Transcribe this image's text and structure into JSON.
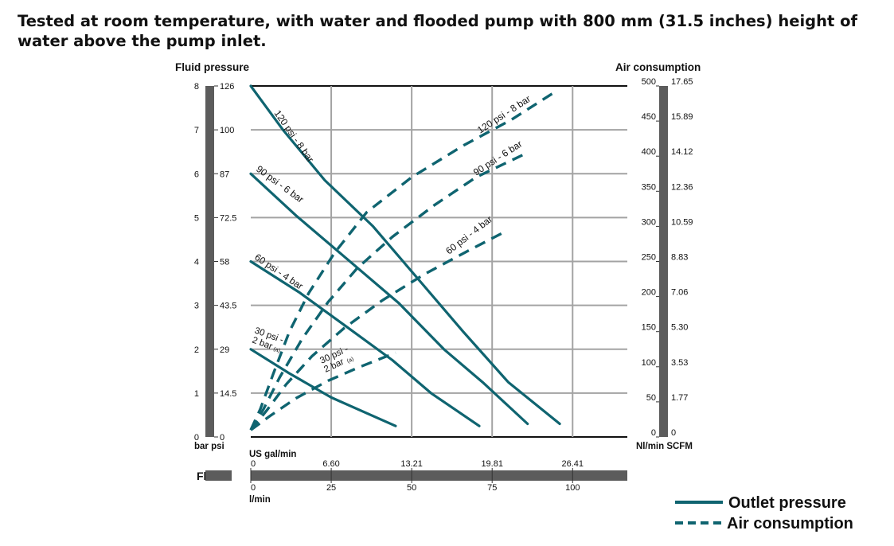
{
  "title": "Tested at room temperature, with water and flooded pump with 800 mm  (31.5 inches) height of water above the pump inlet.",
  "chart_data": {
    "type": "line",
    "left_axis": {
      "label": "Fluid pressure",
      "units_label": "bar psi",
      "bar_ticks": [
        "0",
        "1",
        "2",
        "3",
        "4",
        "5",
        "6",
        "7",
        "8"
      ],
      "psi_ticks": [
        "0",
        "14.5",
        "29",
        "43.5",
        "58",
        "72.5",
        "87",
        "100",
        "126"
      ],
      "ylim_bar": [
        0,
        8
      ]
    },
    "right_axis": {
      "label": "Air consumption",
      "units_label": "Nl/min SCFM",
      "nlmin_ticks": [
        "0",
        "50",
        "100",
        "150",
        "200",
        "250",
        "300",
        "350",
        "400",
        "450",
        "500"
      ],
      "scfm_ticks": [
        "0",
        "1.77",
        "3.53",
        "5.30",
        "7.06",
        "8.83",
        "10.59",
        "12.36",
        "14.12",
        "15.89",
        "17.65"
      ],
      "ylim_nlmin": [
        0,
        500
      ]
    },
    "x_axis": {
      "label": "Flow",
      "gal_label": "US gal/min",
      "lmin_label": "l/min",
      "gal_ticks": [
        "0",
        "6.60",
        "13.21",
        "19.81",
        "26.41"
      ],
      "lmin_ticks": [
        "0",
        "25",
        "50",
        "75",
        "100"
      ],
      "xlim_lmin": [
        0,
        117
      ]
    },
    "outlet_pressure_series": [
      {
        "name": "120 psi - 8 bar",
        "x": [
          0,
          10,
          23,
          38,
          52,
          66,
          80,
          96
        ],
        "y": [
          8,
          7.0,
          5.85,
          4.8,
          3.6,
          2.4,
          1.25,
          0.3
        ]
      },
      {
        "name": "90 psi - 6 bar",
        "x": [
          0,
          14,
          30,
          46,
          60,
          72,
          86
        ],
        "y": [
          6.0,
          5.05,
          4.05,
          3.05,
          2.0,
          1.25,
          0.3
        ]
      },
      {
        "name": "60 psi - 4 bar",
        "x": [
          0,
          15,
          30,
          44,
          56,
          71
        ],
        "y": [
          4.0,
          3.3,
          2.5,
          1.75,
          1.0,
          0.25
        ]
      },
      {
        "name": "30 psi - 2 bar",
        "x": [
          0,
          12,
          25,
          45
        ],
        "y": [
          2.0,
          1.45,
          0.9,
          0.25
        ]
      }
    ],
    "air_consumption_series": [
      {
        "name": "120 psi - 8 bar",
        "x": [
          0,
          3,
          7,
          12,
          18,
          26,
          36,
          50,
          66,
          81,
          94
        ],
        "y": [
          10,
          40,
          90,
          150,
          205,
          262,
          320,
          370,
          415,
          452,
          490
        ]
      },
      {
        "name": "90 psi - 6 bar",
        "x": [
          0,
          4,
          9,
          16,
          24,
          33,
          44,
          57,
          70,
          86
        ],
        "y": [
          10,
          40,
          85,
          140,
          192,
          240,
          285,
          330,
          370,
          405
        ]
      },
      {
        "name": "60 psi - 4 bar",
        "x": [
          0,
          5,
          11,
          19,
          29,
          41,
          54,
          67,
          78
        ],
        "y": [
          10,
          38,
          75,
          115,
          155,
          195,
          232,
          264,
          290
        ]
      },
      {
        "name": "30 psi - 2 bar",
        "x": [
          0,
          6,
          14,
          24,
          34,
          45
        ],
        "y": [
          10,
          30,
          55,
          80,
          100,
          120
        ]
      }
    ],
    "curve_labels": {
      "outlet": [
        "120 psi - 8 bar",
        "90 psi - 6 bar",
        "60 psi - 4 bar",
        "30 psi -",
        "2 bar"
      ],
      "air": [
        "120 psi - 8 bar",
        "90 psi - 6 bar",
        "60 psi - 4 bar",
        "30 psi -",
        "2 bar"
      ],
      "footnote_mark": "(a)"
    },
    "legend": {
      "outlet": "Outlet pressure",
      "air": "Air consumption",
      "placement": "bottom-right"
    },
    "grid": true,
    "colors": {
      "line": "#0f6470",
      "axis_bar": "#5c5c5c"
    }
  }
}
